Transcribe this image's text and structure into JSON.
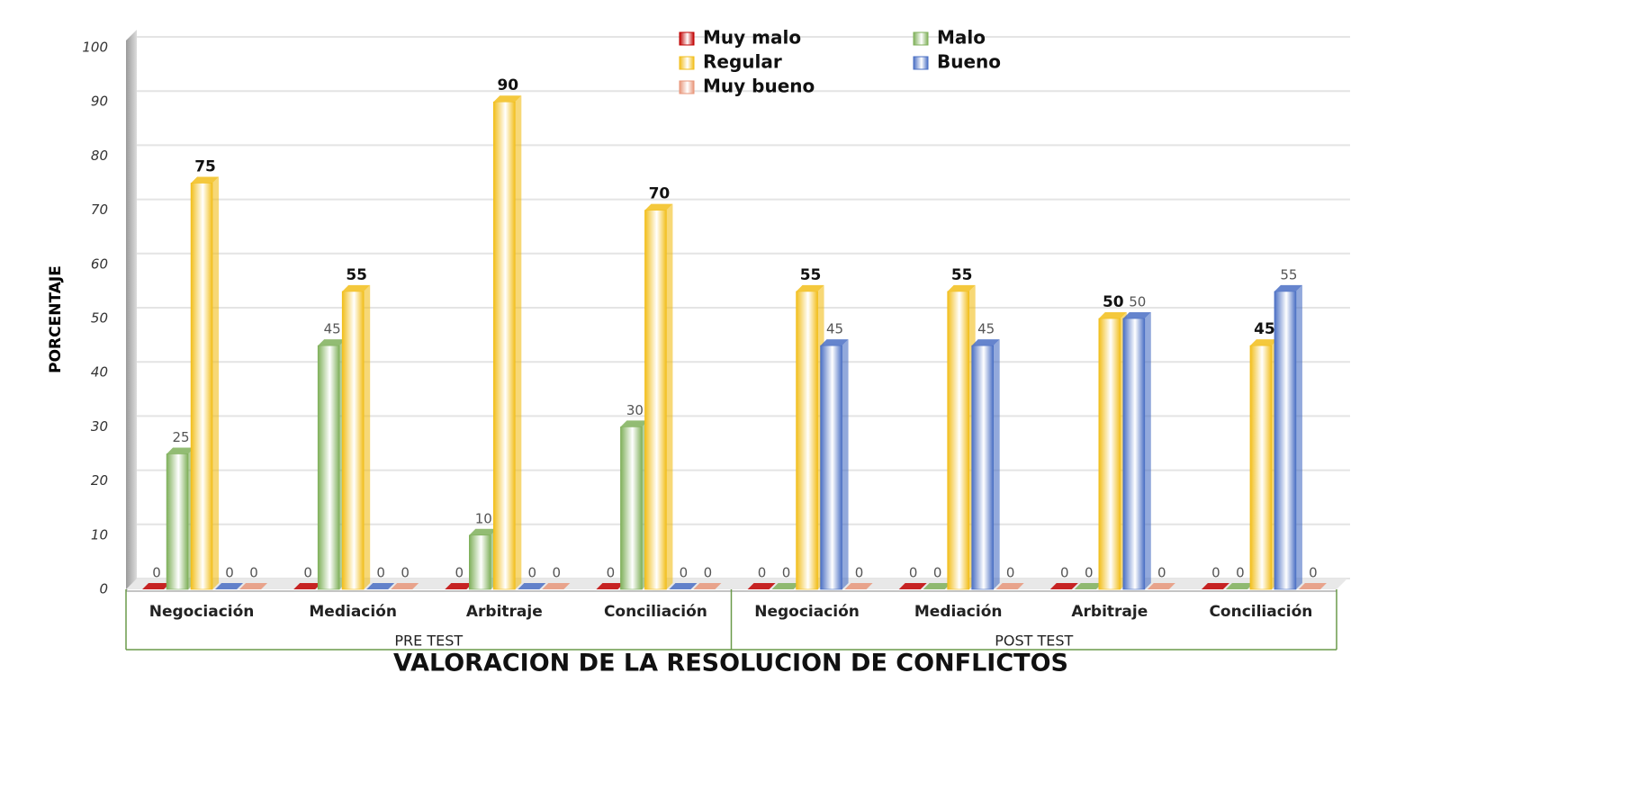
{
  "chart_data": {
    "type": "bar",
    "title": "VALORACION DE LA RESOLUCION DE CONFLICTOS",
    "y_label": "PORCENTAJE",
    "categories": [
      "Negociación",
      "Mediación",
      "Arbitraje",
      "Conciliación",
      "Negociación",
      "Mediación",
      "Arbitraje",
      "Conciliación"
    ],
    "groups": [
      "PRE TEST",
      "POST TEST"
    ],
    "series": [
      {
        "name": "Muy malo",
        "color": "#c00000",
        "values": [
          0,
          0,
          0,
          0,
          0,
          0,
          0,
          0
        ]
      },
      {
        "name": "Malo",
        "color": "#7fb05a",
        "values": [
          25,
          45,
          10,
          30,
          0,
          0,
          0,
          0
        ]
      },
      {
        "name": "Regular",
        "color": "#f2be1a",
        "values": [
          75,
          55,
          90,
          70,
          55,
          55,
          50,
          45
        ]
      },
      {
        "name": "Bueno",
        "color": "#4a6fc4",
        "values": [
          0,
          0,
          0,
          0,
          45,
          45,
          50,
          55
        ]
      },
      {
        "name": "Muy bueno",
        "color": "#e8967a",
        "values": [
          0,
          0,
          0,
          0,
          0,
          0,
          0,
          0
        ]
      }
    ],
    "ylim": [
      0,
      100
    ],
    "yticks": [
      0,
      10,
      20,
      30,
      40,
      50,
      60,
      70,
      80,
      90,
      100
    ],
    "grid": true,
    "legend": "top"
  }
}
